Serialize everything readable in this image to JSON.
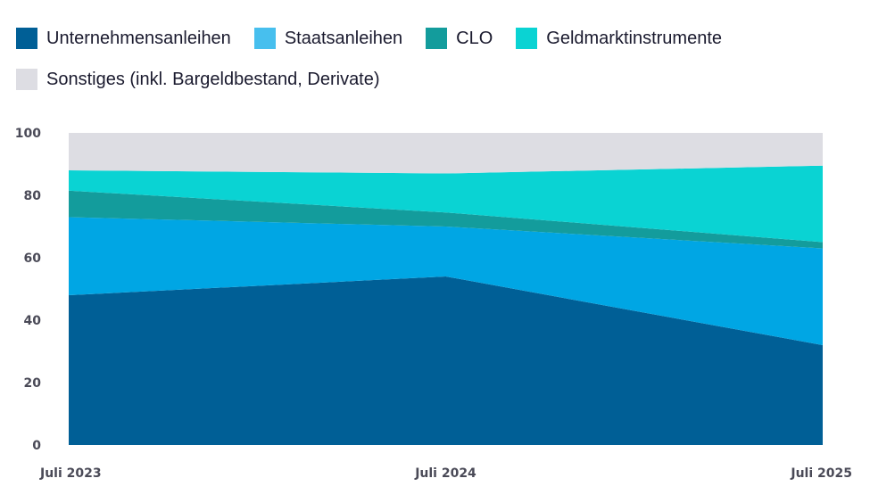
{
  "chart_data": {
    "type": "area",
    "stacked": true,
    "x": [
      "Juli 2023",
      "Juli 2024",
      "Juli 2025"
    ],
    "ylim": [
      0,
      100
    ],
    "yticks": [
      0,
      20,
      40,
      60,
      80,
      100
    ],
    "legend_position": "top-left",
    "grid": false,
    "series": [
      {
        "name": "Unternehmensanleihen",
        "color": "#005f96",
        "values": [
          48,
          54,
          32
        ]
      },
      {
        "name": "Staatsanleihen",
        "color": "#00a6e4",
        "values": [
          25,
          16,
          31
        ]
      },
      {
        "name": "CLO",
        "color": "#139c9c",
        "values": [
          8.5,
          4.5,
          2
        ]
      },
      {
        "name": "Geldmarktinstrumente",
        "color": "#0ad3d3",
        "values": [
          6.5,
          12.5,
          24.5
        ]
      },
      {
        "name": "Sonstiges (inkl. Bargeldbestand, Derivate)",
        "color": "#dddde3",
        "values": [
          12,
          13,
          10.5
        ]
      }
    ]
  }
}
